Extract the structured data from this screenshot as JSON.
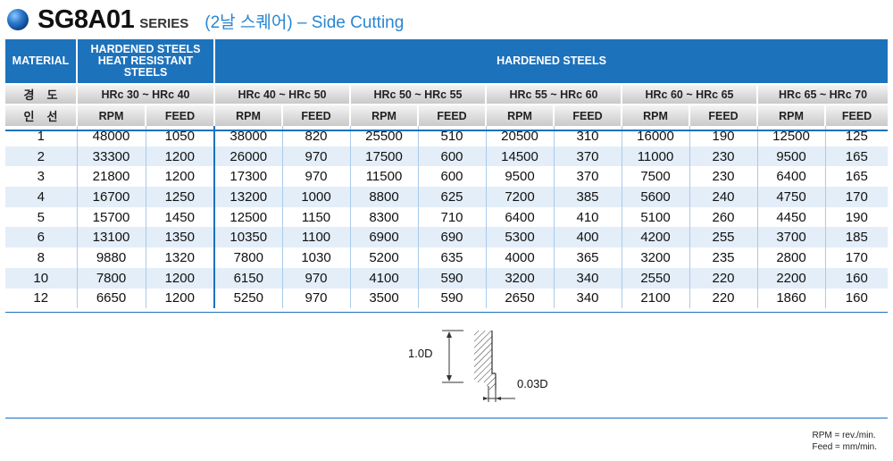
{
  "header": {
    "series_code": "SG8A01",
    "series_word": "SERIES",
    "subtitle": "(2날 스퀘어) – Side Cutting"
  },
  "table": {
    "material_label": "MATERIAL",
    "group1_label": "HARDENED STEELS HEAT RESISTANT STEELS",
    "group2_label": "HARDENED STEELS",
    "hardness_label": "경도",
    "diameter_label": "인선",
    "hardness_ranges": [
      "HRc 30 ~ HRc 40",
      "HRc 40 ~ HRc 50",
      "HRc 50 ~ HRc 55",
      "HRc 55 ~ HRc 60",
      "HRc 60 ~ HRc 65",
      "HRc 65 ~ HRc 70"
    ],
    "rpm_label": "RPM",
    "feed_label": "FEED",
    "rows": [
      {
        "d": "1",
        "vals": [
          "48000",
          "1050",
          "38000",
          "820",
          "25500",
          "510",
          "20500",
          "310",
          "16000",
          "190",
          "12500",
          "125"
        ]
      },
      {
        "d": "2",
        "vals": [
          "33300",
          "1200",
          "26000",
          "970",
          "17500",
          "600",
          "14500",
          "370",
          "11000",
          "230",
          "9500",
          "165"
        ]
      },
      {
        "d": "3",
        "vals": [
          "21800",
          "1200",
          "17300",
          "970",
          "11500",
          "600",
          "9500",
          "370",
          "7500",
          "230",
          "6400",
          "165"
        ]
      },
      {
        "d": "4",
        "vals": [
          "16700",
          "1250",
          "13200",
          "1000",
          "8800",
          "625",
          "7200",
          "385",
          "5600",
          "240",
          "4750",
          "170"
        ]
      },
      {
        "d": "5",
        "vals": [
          "15700",
          "1450",
          "12500",
          "1150",
          "8300",
          "710",
          "6400",
          "410",
          "5100",
          "260",
          "4450",
          "190"
        ]
      },
      {
        "d": "6",
        "vals": [
          "13100",
          "1350",
          "10350",
          "1100",
          "6900",
          "690",
          "5300",
          "400",
          "4200",
          "255",
          "3700",
          "185"
        ]
      },
      {
        "d": "8",
        "vals": [
          "9880",
          "1320",
          "7800",
          "1030",
          "5200",
          "635",
          "4000",
          "365",
          "3200",
          "235",
          "2800",
          "170"
        ]
      },
      {
        "d": "10",
        "vals": [
          "7800",
          "1200",
          "6150",
          "970",
          "4100",
          "590",
          "3200",
          "340",
          "2550",
          "220",
          "2200",
          "160"
        ]
      },
      {
        "d": "12",
        "vals": [
          "6650",
          "1200",
          "5250",
          "970",
          "3500",
          "590",
          "2650",
          "340",
          "2100",
          "220",
          "1860",
          "160"
        ]
      }
    ]
  },
  "diagram": {
    "depth_label": "1.0D",
    "width_label": "0.03D"
  },
  "legend": {
    "rpm": "RPM = rev./min.",
    "feed": "Feed = mm/min."
  },
  "colors": {
    "header_blue": "#1d72bc",
    "stripe": "#e3eef9",
    "subtitle_blue": "#2a86d1"
  }
}
